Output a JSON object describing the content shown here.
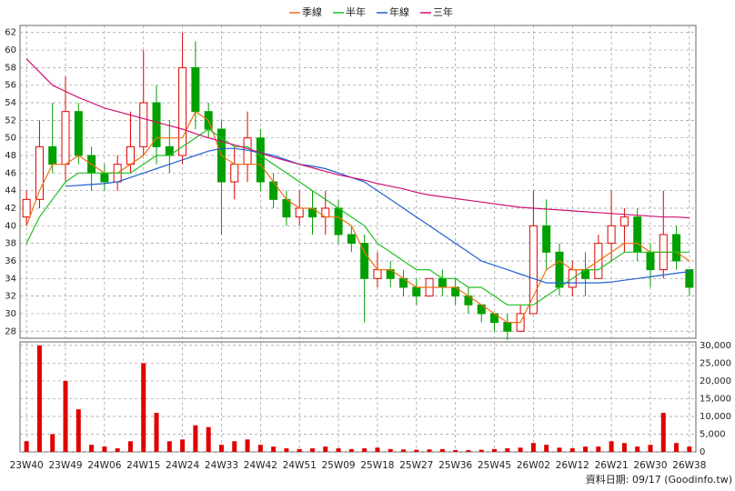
{
  "chart_data": {
    "type": "candlestick",
    "legend": [
      "季線",
      "半年",
      "年線",
      "三年"
    ],
    "footer": "資料日期: 09/17 (Goodinfo.tw)",
    "categories": [
      "23W40",
      null,
      null,
      "23W49",
      null,
      null,
      "24W06",
      null,
      null,
      "24W15",
      null,
      null,
      "24W24",
      null,
      null,
      "24W33",
      null,
      null,
      "24W42",
      null,
      null,
      "24W51",
      null,
      null,
      "25W09",
      null,
      null,
      "25W18",
      null,
      null,
      "25W27",
      null,
      null,
      "25W36",
      null,
      null,
      "25W45",
      null,
      null,
      "26W02",
      null,
      null,
      "26W12",
      null,
      null,
      "26W21",
      null,
      null,
      "26W30",
      null,
      null,
      "26W38"
    ],
    "open": [
      41,
      43,
      49,
      47,
      53,
      48,
      46,
      45,
      47,
      49,
      54,
      49,
      48,
      58,
      53,
      51,
      45,
      47,
      50,
      45,
      43,
      41,
      42,
      41,
      42,
      39,
      38,
      34,
      35,
      34,
      33,
      32,
      34,
      33,
      32,
      31,
      30,
      29,
      28,
      30,
      40,
      37,
      33,
      35,
      34,
      38,
      40,
      41,
      37,
      35,
      39,
      35
    ],
    "high": [
      44,
      52,
      54,
      57,
      54,
      49,
      47,
      48,
      53,
      60,
      56,
      52,
      62,
      61,
      54,
      52,
      49,
      53,
      51,
      46,
      44,
      44,
      44,
      44,
      43,
      40,
      39,
      37,
      36,
      35,
      34,
      34,
      35,
      34,
      33,
      31,
      30,
      30,
      31,
      44,
      43,
      38,
      36,
      37,
      39,
      44,
      42,
      42,
      38,
      44,
      40,
      35
    ],
    "low": [
      40,
      42,
      46,
      45,
      47,
      44,
      44,
      44,
      46,
      48,
      47,
      46,
      47,
      51,
      50,
      39,
      43,
      45,
      44,
      42,
      40,
      40,
      39,
      39,
      38,
      37,
      29,
      33,
      33,
      32,
      31,
      32,
      32,
      31,
      30,
      29,
      28,
      27,
      28,
      30,
      35,
      32,
      32,
      32,
      34,
      36,
      37,
      36,
      33,
      34,
      35,
      32
    ],
    "close": [
      43,
      49,
      47,
      53,
      48,
      46,
      45,
      47,
      49,
      54,
      49,
      48,
      58,
      53,
      51,
      45,
      47,
      50,
      45,
      43,
      41,
      42,
      41,
      42,
      39,
      38,
      34,
      35,
      34,
      33,
      32,
      34,
      33,
      32,
      31,
      30,
      29,
      28,
      30,
      40,
      37,
      33,
      35,
      34,
      38,
      40,
      41,
      37,
      35,
      39,
      36,
      33
    ],
    "up_color": "#e00000",
    "down_color": "#00a000",
    "ylim": [
      27.2,
      62.8
    ],
    "yticks": [
      28,
      30,
      32,
      34,
      36,
      38,
      40,
      42,
      44,
      46,
      48,
      50,
      52,
      54,
      56,
      58,
      60,
      62
    ],
    "grid": true,
    "series": [
      {
        "name": "季線",
        "color": "#f07010",
        "values": [
          40,
          44,
          47,
          47,
          48,
          47,
          46,
          46,
          47,
          48,
          50,
          50,
          50,
          53,
          52,
          48,
          47,
          47,
          47,
          45,
          43,
          42,
          42,
          41,
          41,
          40,
          37,
          35,
          35,
          34,
          33,
          33,
          33,
          33,
          32,
          31,
          30,
          29,
          29,
          32,
          35,
          36,
          35,
          35,
          36,
          37,
          38,
          38,
          37,
          37,
          37,
          36
        ]
      },
      {
        "name": "半年",
        "color": "#20c020",
        "values": [
          38,
          41,
          43,
          45,
          46,
          46,
          46,
          46,
          46,
          47,
          48,
          48,
          49,
          50,
          51,
          50,
          49,
          49,
          48,
          47,
          46,
          45,
          44,
          43,
          42,
          41,
          40,
          38,
          37,
          36,
          35,
          35,
          34,
          34,
          33,
          33,
          32,
          31,
          31,
          31,
          32,
          33,
          34,
          35,
          35,
          36,
          37,
          37,
          37,
          37,
          37,
          37
        ]
      },
      {
        "name": "年線",
        "color": "#2060d0",
        "values": [
          null,
          null,
          null,
          44.5,
          44.6,
          44.7,
          44.8,
          45,
          45.5,
          46,
          46.5,
          47,
          47.5,
          48,
          48.5,
          48.8,
          48.8,
          48.6,
          48.3,
          48,
          47.5,
          47,
          46.8,
          46.5,
          46,
          45.5,
          45,
          44,
          43,
          42,
          41,
          40,
          39,
          38,
          37,
          36,
          35.5,
          35,
          34.5,
          34,
          33.5,
          33.5,
          33.5,
          33.5,
          33.5,
          33.6,
          33.8,
          34,
          34.2,
          34.4,
          34.6,
          34.8
        ]
      },
      {
        "name": "三年",
        "color": "#d01070",
        "values": [
          59,
          57.5,
          56,
          55.3,
          54.6,
          54,
          53.4,
          53,
          52.6,
          52.2,
          51.8,
          51.4,
          51,
          50.5,
          50,
          49.6,
          49.2,
          48.8,
          48.3,
          47.8,
          47.4,
          47,
          46.6,
          46.2,
          45.8,
          45.5,
          45.2,
          44.8,
          44.5,
          44.2,
          43.8,
          43.5,
          43.3,
          43.1,
          42.9,
          42.7,
          42.5,
          42.3,
          42.1,
          42,
          41.9,
          41.8,
          41.7,
          41.6,
          41.5,
          41.4,
          41.3,
          41.2,
          41.1,
          41,
          41,
          40.9
        ]
      }
    ],
    "volume": {
      "color": "#e00000",
      "values": [
        3000,
        30000,
        5000,
        20000,
        12000,
        2000,
        1500,
        1000,
        3000,
        25000,
        11000,
        3000,
        3500,
        7500,
        7000,
        2000,
        3000,
        3500,
        2000,
        1500,
        1000,
        800,
        1000,
        1500,
        1000,
        800,
        1000,
        1200,
        800,
        700,
        600,
        700,
        800,
        500,
        500,
        600,
        800,
        1000,
        1200,
        2500,
        2000,
        1200,
        1000,
        1500,
        1500,
        3000,
        2500,
        1500,
        2000,
        11000,
        2500,
        1500
      ],
      "ylim": [
        0,
        31000
      ],
      "yticks": [
        0,
        {
          "value": 5000,
          "label": "5,000"
        },
        {
          "value": 10000,
          "label": "10,000"
        },
        {
          "value": 15000,
          "label": "15,000"
        },
        {
          "value": 20000,
          "label": "20,000"
        },
        {
          "value": 25000,
          "label": "25,000"
        },
        {
          "value": 30000,
          "label": "30,000"
        }
      ]
    }
  }
}
